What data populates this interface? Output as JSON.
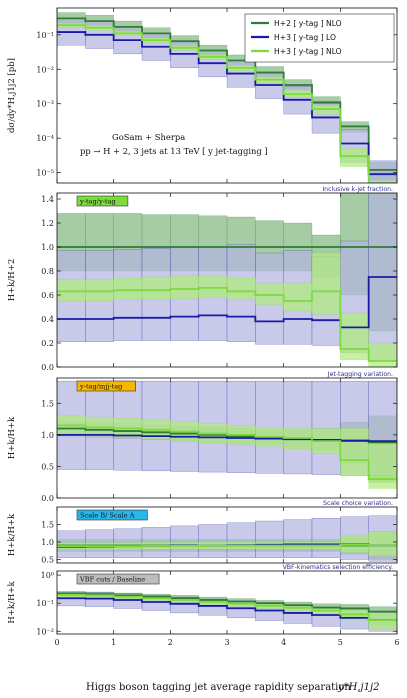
{
  "colors": {
    "h2_nlo": "#2e7d32",
    "h3_lo": "#1a1aa6",
    "h3_nlo": "#7cdc3c",
    "h2_band": "#8fbf8f",
    "h3lo_band": "#b4b4e0",
    "h3nlo_band": "#b0ec7c",
    "caption": "#2d2d8c"
  },
  "chart_data": {
    "type": "line",
    "x_edges": [
      0,
      0.5,
      1,
      1.5,
      2,
      2.5,
      3,
      3.5,
      4,
      4.5,
      5,
      5.5,
      6
    ],
    "xlabel": "Higgs boson tagging jet average rapidity separation",
    "xlabel_symbol": "y*H,j1j2",
    "xticks": [
      "0",
      "1",
      "2",
      "3",
      "4",
      "5",
      "6"
    ],
    "legend": {
      "placement": "top-right",
      "entries": [
        "H+2 [ y-tag ] NLO",
        "H+3 [ y-tag ] LO",
        "H+3 [ y-tag ] NLO"
      ]
    },
    "note": {
      "line1": "GoSam + Sherpa",
      "line2": "pp → H + 2, 3 jets at 13 TeV  [ y jet-tagging ]"
    },
    "panels": [
      {
        "id": "main",
        "ylabel": "dσ/dy*H,j1j2 [pb]",
        "scale": "log",
        "ylim": [
          5e-06,
          0.6
        ],
        "yticks": [
          "10⁻¹",
          "10⁻²",
          "10⁻³",
          "10⁻⁴",
          "10⁻⁵"
        ],
        "ytick_values": [
          0.1,
          0.01,
          0.001,
          0.0001,
          1e-05
        ],
        "series": [
          {
            "name": "H+2 [ y-tag ] NLO",
            "values": [
              0.3,
              0.25,
              0.17,
              0.11,
              0.065,
              0.035,
              0.018,
              0.008,
              0.0035,
              0.0011,
              0.00022,
              1.2e-05
            ],
            "lower": [
              0.21,
              0.18,
              0.12,
              0.08,
              0.047,
              0.025,
              0.013,
              0.006,
              0.0026,
              0.0008,
              0.00015,
              6e-06
            ],
            "upper": [
              0.44,
              0.37,
              0.25,
              0.16,
              0.095,
              0.05,
              0.026,
              0.012,
              0.005,
              0.0016,
              0.0003,
              2e-05
            ]
          },
          {
            "name": "H+3 [ y-tag ] LO",
            "values": [
              0.12,
              0.1,
              0.07,
              0.045,
              0.028,
              0.015,
              0.0075,
              0.0035,
              0.0013,
              0.0004,
              7e-05,
              9e-06
            ],
            "lower": [
              0.05,
              0.04,
              0.028,
              0.018,
              0.011,
              0.006,
              0.003,
              0.0014,
              0.0005,
              0.00014,
              2e-05,
              3e-06
            ],
            "upper": [
              0.3,
              0.25,
              0.17,
              0.11,
              0.068,
              0.036,
              0.018,
              0.0085,
              0.0032,
              0.001,
              0.00018,
              2.2e-05
            ]
          },
          {
            "name": "H+3 [ y-tag ] NLO",
            "values": [
              0.19,
              0.16,
              0.11,
              0.07,
              0.042,
              0.023,
              0.011,
              0.005,
              0.0019,
              0.0007,
              3e-05,
              2e-06
            ],
            "lower": [
              0.16,
              0.135,
              0.095,
              0.06,
              0.036,
              0.019,
              0.009,
              0.004,
              0.0015,
              0.0005,
              1.5e-05,
              1e-06
            ],
            "upper": [
              0.22,
              0.19,
              0.13,
              0.082,
              0.05,
              0.027,
              0.013,
              0.006,
              0.0024,
              0.0009,
              5e-05,
              4e-06
            ]
          }
        ]
      },
      {
        "id": "ratio-k",
        "ylabel": "H+k/H+2",
        "scale": "linear",
        "ylim": [
          0,
          1.45
        ],
        "yticks": [
          "0.0",
          "0.2",
          "0.4",
          "0.6",
          "0.8",
          "1.0",
          "1.2",
          "1.4"
        ],
        "ytick_values": [
          0,
          0.2,
          0.4,
          0.6,
          0.8,
          1.0,
          1.2,
          1.4
        ],
        "badge": "y-tag/y-tag",
        "badge_color": "#7cdc3c",
        "caption": "Inclusive k-jet fraction.",
        "series": [
          {
            "name": "H+2 [ y-tag ] NLO",
            "values": [
              1,
              1,
              1,
              1,
              1,
              1,
              1,
              1,
              1,
              1,
              1,
              1
            ],
            "lower": [
              0.8,
              0.8,
              0.8,
              0.8,
              0.8,
              0.8,
              0.8,
              0.8,
              0.8,
              0.75,
              0.6,
              0.3
            ],
            "upper": [
              1.28,
              1.28,
              1.28,
              1.27,
              1.27,
              1.26,
              1.25,
              1.22,
              1.2,
              1.1,
              1.5,
              1.5
            ]
          },
          {
            "name": "H+3 [ y-tag ] LO",
            "values": [
              0.4,
              0.4,
              0.41,
              0.41,
              0.42,
              0.43,
              0.42,
              0.38,
              0.4,
              0.39,
              0.33,
              0.75
            ],
            "lower": [
              0.21,
              0.21,
              0.22,
              0.22,
              0.22,
              0.22,
              0.21,
              0.19,
              0.19,
              0.18,
              0.12,
              0.05
            ],
            "upper": [
              0.97,
              0.97,
              0.98,
              0.99,
              1.0,
              1.0,
              1.02,
              0.95,
              0.97,
              0.92,
              1.05,
              1.5
            ]
          },
          {
            "name": "H+3 [ y-tag ] NLO",
            "values": [
              0.63,
              0.63,
              0.64,
              0.64,
              0.65,
              0.66,
              0.63,
              0.6,
              0.55,
              0.63,
              0.15,
              0.05
            ],
            "lower": [
              0.55,
              0.55,
              0.56,
              0.56,
              0.57,
              0.58,
              0.56,
              0.52,
              0.47,
              0.44,
              0.06,
              0.0
            ],
            "upper": [
              0.73,
              0.73,
              0.74,
              0.75,
              0.76,
              0.76,
              0.74,
              0.7,
              0.7,
              0.95,
              0.45,
              0.2
            ]
          }
        ]
      },
      {
        "id": "jet-tag",
        "ylabel": "H+k/H+k",
        "scale": "linear",
        "ylim": [
          0,
          1.9
        ],
        "yticks": [
          "0.0",
          "0.5",
          "1.0",
          "1.5"
        ],
        "ytick_values": [
          0,
          0.5,
          1.0,
          1.5
        ],
        "badge": "y-tag/mjj-tag",
        "badge_color": "#f5b800",
        "caption": "Jet-tagging variation.",
        "series": [
          {
            "name": "H+2 [ y-tag ] NLO",
            "values": [
              1.1,
              1.08,
              1.06,
              1.04,
              1.02,
              1.0,
              0.98,
              0.96,
              0.94,
              0.92,
              0.9,
              0.88
            ],
            "lower": [
              0.98,
              0.96,
              0.94,
              0.92,
              0.9,
              0.88,
              0.86,
              0.84,
              0.8,
              0.75,
              0.55,
              0.25
            ],
            "upper": [
              1.22,
              1.2,
              1.18,
              1.16,
              1.14,
              1.12,
              1.1,
              1.08,
              1.08,
              1.1,
              1.2,
              1.3
            ]
          },
          {
            "name": "H+3 [ y-tag ] LO",
            "values": [
              1.0,
              1.0,
              0.99,
              0.98,
              0.97,
              0.96,
              0.95,
              0.94,
              0.93,
              0.92,
              0.91,
              0.9
            ],
            "lower": [
              0.45,
              0.45,
              0.44,
              0.43,
              0.42,
              0.41,
              0.4,
              0.39,
              0.38,
              0.37,
              0.36,
              0.35
            ],
            "upper": [
              1.85,
              1.85,
              1.85,
              1.85,
              1.85,
              1.85,
              1.85,
              1.85,
              1.85,
              1.85,
              1.85,
              1.85
            ]
          },
          {
            "name": "H+3 [ y-tag ] NLO",
            "values": [
              1.15,
              1.12,
              1.1,
              1.08,
              1.05,
              1.02,
              1.0,
              0.97,
              0.95,
              0.9,
              0.6,
              0.3
            ],
            "lower": [
              1.0,
              0.98,
              0.96,
              0.93,
              0.9,
              0.87,
              0.85,
              0.82,
              0.78,
              0.7,
              0.35,
              0.15
            ],
            "upper": [
              1.3,
              1.28,
              1.26,
              1.24,
              1.21,
              1.18,
              1.15,
              1.12,
              1.1,
              1.1,
              1.1,
              0.9
            ]
          }
        ]
      },
      {
        "id": "scale",
        "ylabel": "H+k/H+k",
        "scale": "linear",
        "ylim": [
          0.4,
          2.0
        ],
        "yticks": [
          "1.5",
          "1.0",
          "0.5"
        ],
        "ytick_values": [
          1.5,
          1.0,
          0.5
        ],
        "badge": "Scale B/ Scale A",
        "badge_color": "#29b6e8",
        "caption": "Scale choice variation.",
        "series": [
          {
            "name": "H+2 [ y-tag ] NLO",
            "values": [
              0.9,
              0.9,
              0.9,
              0.9,
              0.9,
              0.9,
              0.9,
              0.9,
              0.9,
              0.9,
              0.9,
              0.9
            ],
            "lower": [
              0.73,
              0.73,
              0.73,
              0.73,
              0.73,
              0.73,
              0.73,
              0.73,
              0.73,
              0.73,
              0.65,
              0.5
            ],
            "upper": [
              1.07,
              1.07,
              1.07,
              1.07,
              1.07,
              1.07,
              1.07,
              1.07,
              1.07,
              1.07,
              1.15,
              1.3
            ]
          },
          {
            "name": "H+3 [ y-tag ] LO",
            "values": [
              0.86,
              0.87,
              0.88,
              0.89,
              0.9,
              0.9,
              0.91,
              0.92,
              0.93,
              0.93,
              0.93,
              0.9
            ],
            "lower": [
              0.55,
              0.55,
              0.55,
              0.55,
              0.55,
              0.55,
              0.55,
              0.55,
              0.55,
              0.55,
              0.5,
              0.45
            ],
            "upper": [
              1.32,
              1.35,
              1.38,
              1.42,
              1.46,
              1.5,
              1.55,
              1.6,
              1.64,
              1.68,
              1.72,
              1.75
            ]
          },
          {
            "name": "H+3 [ y-tag ] NLO",
            "values": [
              0.88,
              0.88,
              0.88,
              0.89,
              0.89,
              0.9,
              0.9,
              0.9,
              0.9,
              0.9,
              0.92,
              0.9
            ],
            "lower": [
              0.78,
              0.78,
              0.78,
              0.79,
              0.79,
              0.8,
              0.8,
              0.8,
              0.8,
              0.8,
              0.7,
              0.6
            ],
            "upper": [
              0.98,
              0.98,
              0.98,
              0.99,
              0.99,
              1.0,
              1.0,
              1.0,
              1.0,
              1.0,
              1.2,
              1.3
            ]
          }
        ]
      },
      {
        "id": "vbf",
        "ylabel": "H+k/H+k",
        "scale": "log",
        "ylim": [
          0.008,
          1.4
        ],
        "yticks": [
          "10⁰",
          "10⁻¹",
          "10⁻²"
        ],
        "ytick_values": [
          1,
          0.1,
          0.01
        ],
        "badge": "VBF cuts / Baseline",
        "badge_color": "#bdbdbd",
        "caption": "VBF-kinematics selection efficiency.",
        "series": [
          {
            "name": "H+2 [ y-tag ] NLO",
            "values": [
              0.22,
              0.21,
              0.19,
              0.17,
              0.15,
              0.13,
              0.115,
              0.1,
              0.085,
              0.07,
              0.065,
              0.05
            ],
            "lower": [
              0.18,
              0.17,
              0.15,
              0.135,
              0.12,
              0.1,
              0.09,
              0.075,
              0.06,
              0.05,
              0.03,
              0.015
            ],
            "upper": [
              0.26,
              0.25,
              0.23,
              0.21,
              0.19,
              0.165,
              0.145,
              0.125,
              0.11,
              0.095,
              0.09,
              0.075
            ]
          },
          {
            "name": "H+3 [ y-tag ] LO",
            "values": [
              0.15,
              0.145,
              0.13,
              0.11,
              0.095,
              0.08,
              0.066,
              0.055,
              0.045,
              0.038,
              0.03,
              0.025
            ],
            "lower": [
              0.08,
              0.075,
              0.065,
              0.055,
              0.045,
              0.037,
              0.03,
              0.024,
              0.019,
              0.015,
              0.012,
              0.01
            ],
            "upper": [
              0.25,
              0.24,
              0.22,
              0.19,
              0.165,
              0.14,
              0.12,
              0.1,
              0.085,
              0.072,
              0.06,
              0.05
            ]
          },
          {
            "name": "H+3 [ y-tag ] NLO",
            "values": [
              0.2,
              0.19,
              0.17,
              0.15,
              0.13,
              0.11,
              0.095,
              0.08,
              0.068,
              0.055,
              0.04,
              0.025
            ],
            "lower": [
              0.17,
              0.16,
              0.145,
              0.125,
              0.11,
              0.09,
              0.078,
              0.065,
              0.055,
              0.04,
              0.025,
              0.012
            ],
            "upper": [
              0.24,
              0.23,
              0.205,
              0.18,
              0.155,
              0.13,
              0.115,
              0.097,
              0.083,
              0.07,
              0.06,
              0.045
            ]
          }
        ]
      }
    ]
  }
}
